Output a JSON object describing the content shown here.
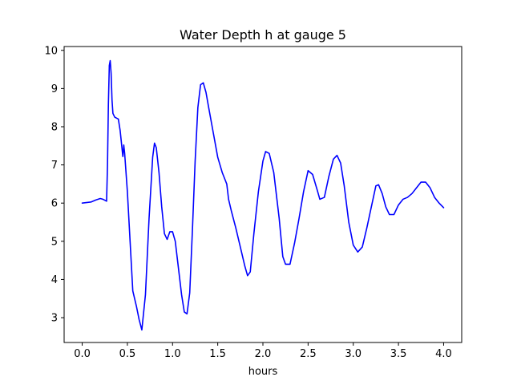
{
  "chart_data": {
    "type": "line",
    "title": "Water Depth h at gauge 5",
    "xlabel": "hours",
    "ylabel": "",
    "xlim": [
      -0.2,
      4.2
    ],
    "ylim": [
      2.35,
      10.1
    ],
    "grid": false,
    "x_ticks": [
      0.0,
      0.5,
      1.0,
      1.5,
      2.0,
      2.5,
      3.0,
      3.5,
      4.0
    ],
    "x_tick_labels": [
      "0.0",
      "0.5",
      "1.0",
      "1.5",
      "2.0",
      "2.5",
      "3.0",
      "3.5",
      "4.0"
    ],
    "y_ticks": [
      3,
      4,
      5,
      6,
      7,
      8,
      9,
      10
    ],
    "y_tick_labels": [
      "3",
      "4",
      "5",
      "6",
      "7",
      "8",
      "9",
      "10"
    ],
    "series": [
      {
        "color": "#0000ff",
        "x": [
          0.0,
          0.1,
          0.15,
          0.2,
          0.23,
          0.27,
          0.28,
          0.29,
          0.3,
          0.31,
          0.32,
          0.33,
          0.34,
          0.36,
          0.4,
          0.42,
          0.45,
          0.46,
          0.47,
          0.5,
          0.53,
          0.56,
          0.6,
          0.63,
          0.66,
          0.7,
          0.74,
          0.78,
          0.8,
          0.82,
          0.85,
          0.88,
          0.91,
          0.94,
          0.97,
          1.0,
          1.03,
          1.06,
          1.1,
          1.13,
          1.16,
          1.19,
          1.22,
          1.25,
          1.28,
          1.31,
          1.34,
          1.37,
          1.4,
          1.45,
          1.5,
          1.55,
          1.6,
          1.62,
          1.65,
          1.7,
          1.75,
          1.8,
          1.83,
          1.86,
          1.9,
          1.95,
          2.0,
          2.03,
          2.07,
          2.12,
          2.18,
          2.22,
          2.25,
          2.3,
          2.35,
          2.4,
          2.45,
          2.5,
          2.55,
          2.6,
          2.63,
          2.68,
          2.73,
          2.78,
          2.82,
          2.86,
          2.9,
          2.95,
          3.0,
          3.05,
          3.1,
          3.15,
          3.2,
          3.25,
          3.28,
          3.32,
          3.36,
          3.4,
          3.45,
          3.5,
          3.55,
          3.6,
          3.65,
          3.7,
          3.75,
          3.8,
          3.85,
          3.9,
          3.95,
          4.0
        ],
        "y": [
          6.0,
          6.03,
          6.08,
          6.12,
          6.1,
          6.05,
          7.0,
          8.6,
          9.6,
          9.73,
          9.4,
          8.7,
          8.35,
          8.25,
          8.2,
          7.9,
          7.22,
          7.52,
          7.3,
          6.3,
          5.0,
          3.7,
          3.3,
          2.95,
          2.68,
          3.6,
          5.6,
          7.2,
          7.57,
          7.45,
          6.8,
          5.9,
          5.2,
          5.05,
          5.25,
          5.25,
          5.0,
          4.4,
          3.6,
          3.15,
          3.1,
          3.65,
          5.3,
          7.1,
          8.5,
          9.1,
          9.15,
          8.9,
          8.5,
          7.85,
          7.2,
          6.8,
          6.5,
          6.1,
          5.8,
          5.35,
          4.85,
          4.35,
          4.1,
          4.2,
          5.2,
          6.3,
          7.1,
          7.35,
          7.3,
          6.8,
          5.6,
          4.6,
          4.4,
          4.4,
          4.95,
          5.6,
          6.3,
          6.85,
          6.75,
          6.35,
          6.1,
          6.15,
          6.7,
          7.15,
          7.25,
          7.05,
          6.45,
          5.5,
          4.9,
          4.72,
          4.85,
          5.35,
          5.9,
          6.45,
          6.48,
          6.25,
          5.9,
          5.7,
          5.7,
          5.95,
          6.1,
          6.15,
          6.25,
          6.4,
          6.55,
          6.55,
          6.4,
          6.15,
          6.0,
          5.88
        ]
      }
    ]
  }
}
